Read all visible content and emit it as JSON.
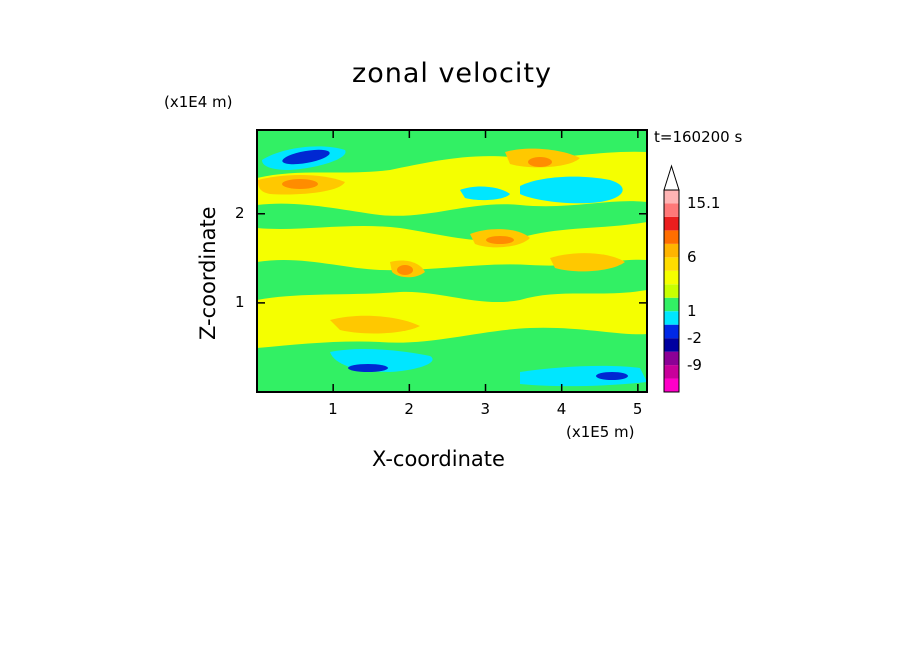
{
  "title": "zonal velocity",
  "time_label": "t=160200 s",
  "y_unit": "(x1E4 m)",
  "x_unit": "(x1E5 m)",
  "colors": {
    "yellow": "#f5ff00",
    "orange": "#ffc800",
    "deep_orange": "#ff8c00",
    "green": "#32f064",
    "cyan": "#00e6ff",
    "blue": "#0028d2",
    "red": "#eb1e1e",
    "pink": "#ff9696",
    "magenta": "#c80096"
  },
  "chart_data": {
    "type": "heatmap",
    "title": "zonal velocity",
    "xlabel": "X-coordinate",
    "ylabel": "Z-coordinate",
    "x_unit": "(x1E5 m)",
    "y_unit": "(x1E4 m)",
    "xlim": [
      0,
      5.12
    ],
    "ylim": [
      0,
      2.94
    ],
    "x_ticks": [
      1,
      2,
      3,
      4,
      5
    ],
    "y_ticks": [
      1,
      2
    ],
    "colorbar": {
      "labels": [
        "15.1",
        "6",
        "1",
        "-2",
        "-9"
      ],
      "bins": [
        {
          "color": "#ff00c8"
        },
        {
          "color": "#c8009b"
        },
        {
          "color": "#8c0096"
        },
        {
          "color": "#0000a0"
        },
        {
          "color": "#0028e6"
        },
        {
          "color": "#00e6ff"
        },
        {
          "color": "#32f064"
        },
        {
          "color": "#c8ff00"
        },
        {
          "color": "#f5ff00"
        },
        {
          "color": "#ffdc00"
        },
        {
          "color": "#ffb400"
        },
        {
          "color": "#ff6e00"
        },
        {
          "color": "#eb1e1e"
        },
        {
          "color": "#ff7878"
        },
        {
          "color": "#ffb4b4"
        }
      ]
    },
    "annotation": "t=160200 s"
  }
}
